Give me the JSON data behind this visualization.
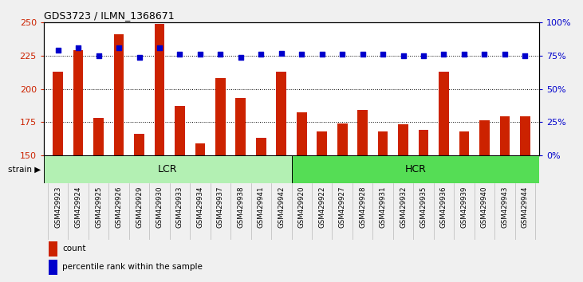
{
  "title": "GDS3723 / ILMN_1368671",
  "samples": [
    "GSM429923",
    "GSM429924",
    "GSM429925",
    "GSM429926",
    "GSM429929",
    "GSM429930",
    "GSM429933",
    "GSM429934",
    "GSM429937",
    "GSM429938",
    "GSM429941",
    "GSM429942",
    "GSM429920",
    "GSM429922",
    "GSM429927",
    "GSM429928",
    "GSM429931",
    "GSM429932",
    "GSM429935",
    "GSM429936",
    "GSM429939",
    "GSM429940",
    "GSM429943",
    "GSM429944"
  ],
  "counts": [
    213,
    229,
    178,
    241,
    166,
    249,
    187,
    159,
    208,
    193,
    163,
    213,
    182,
    168,
    174,
    184,
    168,
    173,
    169,
    213,
    168,
    176,
    179,
    179
  ],
  "percentile_ranks": [
    79,
    81,
    75,
    81,
    74,
    81,
    76,
    76,
    76,
    74,
    76,
    77,
    76,
    76,
    76,
    76,
    76,
    75,
    75,
    76,
    76,
    76,
    76,
    75
  ],
  "group_labels": [
    "LCR",
    "HCR"
  ],
  "group_sizes": [
    12,
    12
  ],
  "group_colors_lcr": "#b3f0b3",
  "group_colors_hcr": "#55dd55",
  "bar_color": "#cc2200",
  "dot_color": "#0000cc",
  "ylim_left": [
    150,
    250
  ],
  "ylim_right": [
    0,
    100
  ],
  "yticks_left": [
    150,
    175,
    200,
    225,
    250
  ],
  "yticks_right": [
    0,
    25,
    50,
    75,
    100
  ],
  "fig_bg": "#f0f0f0",
  "plot_bg": "#ffffff",
  "tick_bg": "#d0d0d0",
  "legend_count_label": "count",
  "legend_pct_label": "percentile rank within the sample",
  "strain_label": "strain"
}
